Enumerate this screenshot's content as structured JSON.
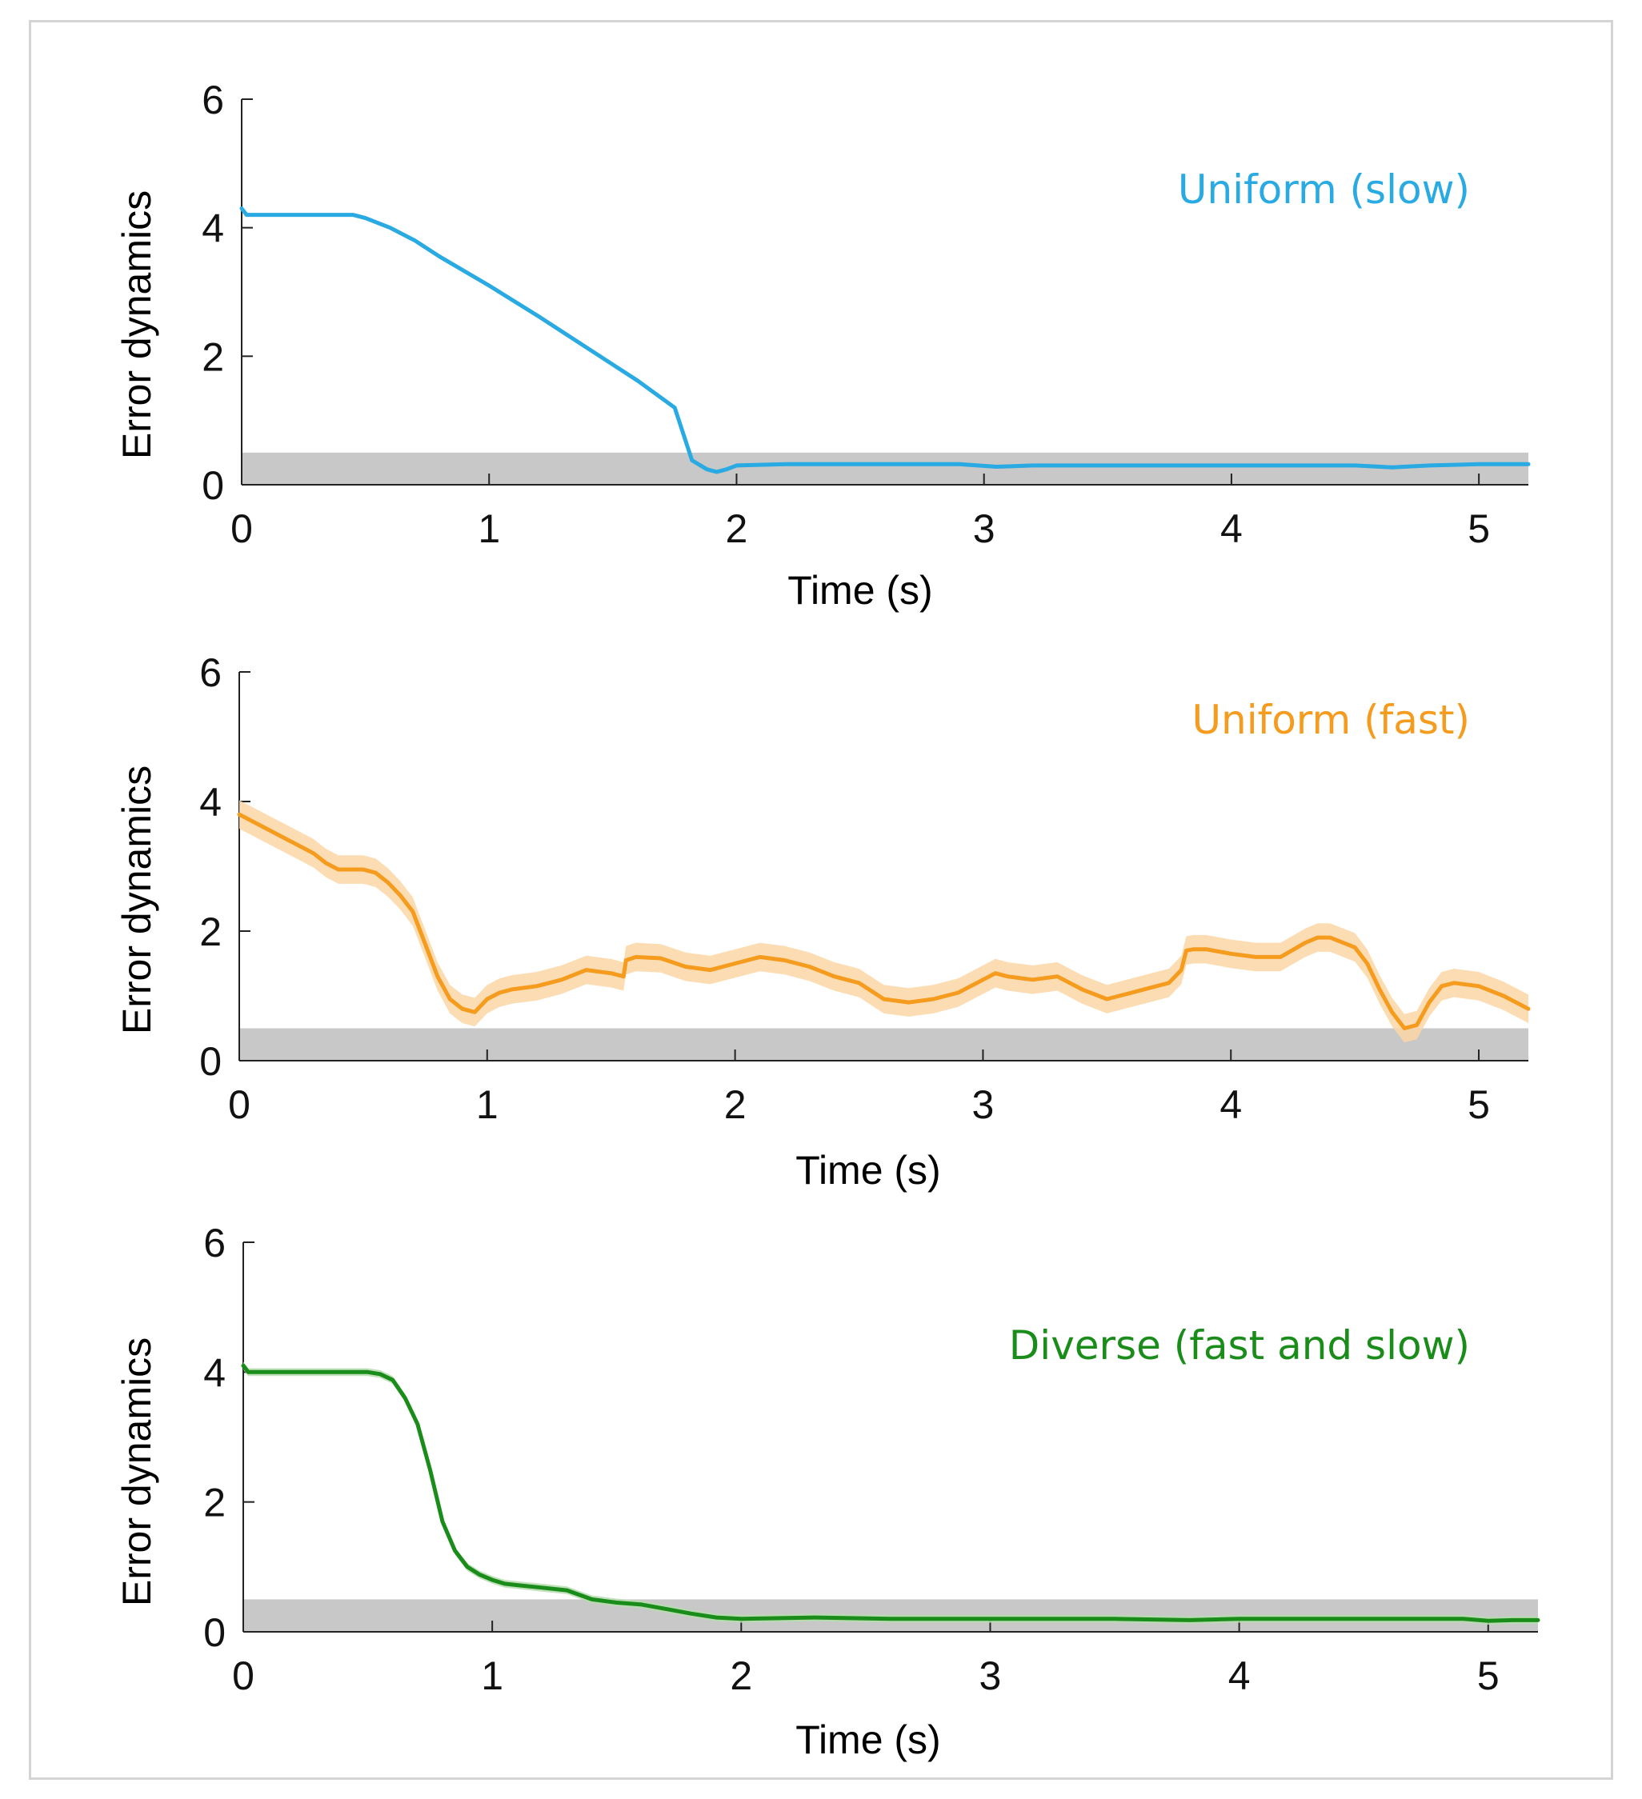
{
  "chart_data": [
    {
      "type": "line",
      "title": "Uniform (slow)",
      "color": "#29aae2",
      "xlabel": "Time (s)",
      "ylabel": "Error dynamics",
      "xlim": [
        0,
        5.2
      ],
      "ylim": [
        0,
        6
      ],
      "xticks": [
        "0",
        "1",
        "2",
        "3",
        "4",
        "5"
      ],
      "yticks": [
        "0",
        "2",
        "4",
        "6"
      ],
      "threshold_band": [
        0,
        0.5
      ],
      "threshold_color": "#c8c8c8",
      "series": [
        {
          "x": [
            0,
            0.02,
            0.1,
            0.3,
            0.45,
            0.5,
            0.6,
            0.7,
            0.8,
            1.0,
            1.2,
            1.4,
            1.6,
            1.75,
            1.82,
            1.88,
            1.92,
            1.96,
            2.0,
            2.2,
            2.5,
            2.9,
            3.05,
            3.2,
            3.6,
            4.0,
            4.5,
            4.65,
            4.8,
            4.9,
            5.0,
            5.2
          ],
          "y": [
            4.3,
            4.2,
            4.2,
            4.2,
            4.2,
            4.15,
            4.0,
            3.8,
            3.55,
            3.1,
            2.62,
            2.12,
            1.62,
            1.2,
            0.38,
            0.24,
            0.2,
            0.24,
            0.3,
            0.32,
            0.32,
            0.32,
            0.28,
            0.3,
            0.3,
            0.3,
            0.3,
            0.27,
            0.3,
            0.31,
            0.32,
            0.32
          ],
          "band": 0.03
        }
      ]
    },
    {
      "type": "line",
      "title": "Uniform (fast)",
      "color": "#f59b1e",
      "band_color": "#fbd7a6",
      "xlabel": "Time (s)",
      "ylabel": "Error dynamics",
      "xlim": [
        0,
        5.2
      ],
      "ylim": [
        0,
        6
      ],
      "xticks": [
        "0",
        "1",
        "2",
        "3",
        "4",
        "5"
      ],
      "yticks": [
        "0",
        "2",
        "4",
        "6"
      ],
      "threshold_band": [
        0,
        0.5
      ],
      "threshold_color": "#c8c8c8",
      "series": [
        {
          "x": [
            0,
            0.1,
            0.2,
            0.3,
            0.35,
            0.4,
            0.5,
            0.55,
            0.6,
            0.65,
            0.7,
            0.75,
            0.8,
            0.85,
            0.9,
            0.95,
            1.0,
            1.05,
            1.1,
            1.2,
            1.3,
            1.4,
            1.5,
            1.55,
            1.56,
            1.6,
            1.7,
            1.8,
            1.9,
            2.0,
            2.1,
            2.2,
            2.3,
            2.4,
            2.5,
            2.6,
            2.7,
            2.8,
            2.9,
            3.0,
            3.05,
            3.1,
            3.2,
            3.3,
            3.4,
            3.5,
            3.6,
            3.7,
            3.75,
            3.8,
            3.82,
            3.85,
            3.9,
            4.0,
            4.1,
            4.2,
            4.3,
            4.35,
            4.4,
            4.5,
            4.55,
            4.6,
            4.65,
            4.7,
            4.75,
            4.8,
            4.85,
            4.9,
            5.0,
            5.1,
            5.2
          ],
          "y": [
            3.8,
            3.6,
            3.4,
            3.2,
            3.05,
            2.95,
            2.95,
            2.9,
            2.75,
            2.55,
            2.3,
            1.8,
            1.3,
            0.95,
            0.8,
            0.75,
            0.95,
            1.05,
            1.1,
            1.15,
            1.25,
            1.4,
            1.35,
            1.3,
            1.55,
            1.6,
            1.58,
            1.45,
            1.4,
            1.5,
            1.6,
            1.55,
            1.45,
            1.3,
            1.2,
            0.95,
            0.9,
            0.95,
            1.05,
            1.25,
            1.35,
            1.3,
            1.25,
            1.3,
            1.1,
            0.95,
            1.05,
            1.15,
            1.2,
            1.4,
            1.7,
            1.72,
            1.72,
            1.65,
            1.6,
            1.6,
            1.82,
            1.9,
            1.9,
            1.75,
            1.5,
            1.1,
            0.75,
            0.5,
            0.55,
            0.9,
            1.15,
            1.2,
            1.15,
            1.0,
            0.8
          ],
          "band": 0.22
        }
      ]
    },
    {
      "type": "line",
      "title": "Diverse (fast and slow)",
      "color": "#1a8c1a",
      "band_color": "#b6dcae",
      "xlabel": "Time (s)",
      "ylabel": "Error dynamics",
      "xlim": [
        0,
        5.2
      ],
      "ylim": [
        0,
        6
      ],
      "xticks": [
        "0",
        "1",
        "2",
        "3",
        "4",
        "5"
      ],
      "yticks": [
        "0",
        "2",
        "4",
        "6"
      ],
      "threshold_band": [
        0,
        0.5
      ],
      "threshold_color": "#c8c8c8",
      "series": [
        {
          "x": [
            0,
            0.02,
            0.1,
            0.3,
            0.5,
            0.55,
            0.6,
            0.65,
            0.7,
            0.75,
            0.8,
            0.85,
            0.9,
            0.95,
            1.0,
            1.05,
            1.1,
            1.2,
            1.3,
            1.4,
            1.5,
            1.6,
            1.7,
            1.8,
            1.9,
            2.0,
            2.3,
            2.6,
            3.0,
            3.5,
            3.8,
            4.0,
            4.5,
            4.9,
            5.0,
            5.1,
            5.2
          ],
          "y": [
            4.1,
            4.0,
            4.0,
            4.0,
            4.0,
            3.97,
            3.88,
            3.6,
            3.2,
            2.5,
            1.7,
            1.25,
            1.0,
            0.88,
            0.8,
            0.74,
            0.72,
            0.68,
            0.64,
            0.5,
            0.45,
            0.42,
            0.35,
            0.28,
            0.22,
            0.2,
            0.22,
            0.2,
            0.2,
            0.2,
            0.18,
            0.2,
            0.2,
            0.2,
            0.17,
            0.18,
            0.18
          ],
          "band": 0.06
        }
      ]
    }
  ]
}
